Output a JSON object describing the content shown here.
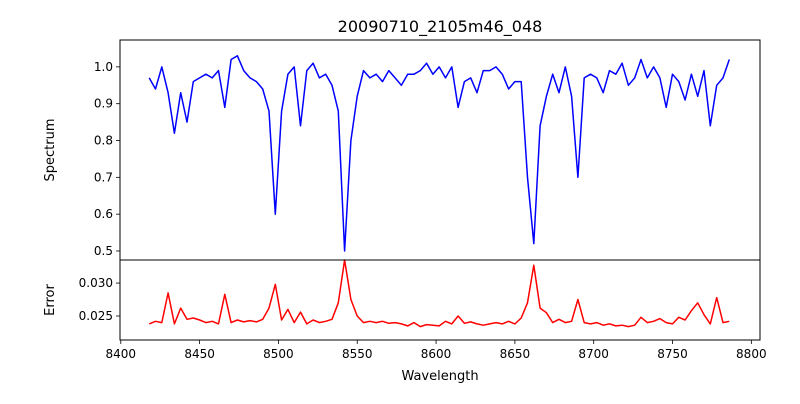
{
  "chart_data": [
    {
      "type": "line",
      "title": "20090710_2105m46_048",
      "xlabel": "",
      "ylabel": "Spectrum",
      "xlim": [
        8399.5,
        8805.5
      ],
      "ylim": [
        0.4755,
        1.073
      ],
      "yticks": [
        "0.5",
        "0.6",
        "0.7",
        "0.8",
        "0.9",
        "1.0"
      ],
      "ytick_values": [
        0.5,
        0.6,
        0.7,
        0.8,
        0.9,
        1.0
      ],
      "color": "#0000ff",
      "x": [
        8418,
        8422,
        8426,
        8430,
        8434,
        8438,
        8442,
        8446,
        8450,
        8454,
        8458,
        8462,
        8466,
        8470,
        8474,
        8478,
        8482,
        8486,
        8490,
        8494,
        8498,
        8502,
        8506,
        8510,
        8514,
        8518,
        8522,
        8526,
        8530,
        8534,
        8538,
        8542,
        8546,
        8550,
        8554,
        8558,
        8562,
        8566,
        8570,
        8574,
        8578,
        8582,
        8586,
        8590,
        8594,
        8598,
        8602,
        8606,
        8610,
        8614,
        8618,
        8622,
        8626,
        8630,
        8634,
        8638,
        8642,
        8646,
        8650,
        8654,
        8658,
        8662,
        8666,
        8670,
        8674,
        8678,
        8682,
        8686,
        8690,
        8694,
        8698,
        8702,
        8706,
        8710,
        8714,
        8718,
        8722,
        8726,
        8730,
        8734,
        8738,
        8742,
        8746,
        8750,
        8754,
        8758,
        8762,
        8766,
        8770,
        8774,
        8778,
        8782,
        8786
      ],
      "y": [
        0.97,
        0.94,
        1.0,
        0.93,
        0.82,
        0.93,
        0.85,
        0.96,
        0.97,
        0.98,
        0.97,
        0.99,
        0.89,
        1.02,
        1.03,
        0.99,
        0.97,
        0.96,
        0.94,
        0.88,
        0.6,
        0.88,
        0.98,
        1.0,
        0.84,
        0.99,
        1.01,
        0.97,
        0.98,
        0.95,
        0.88,
        0.5,
        0.8,
        0.92,
        0.99,
        0.97,
        0.98,
        0.96,
        0.99,
        0.97,
        0.95,
        0.98,
        0.98,
        0.99,
        1.01,
        0.98,
        1.0,
        0.97,
        1.0,
        0.89,
        0.96,
        0.97,
        0.93,
        0.99,
        0.99,
        1.0,
        0.98,
        0.94,
        0.96,
        0.96,
        0.7,
        0.52,
        0.84,
        0.92,
        0.98,
        0.93,
        1.0,
        0.92,
        0.7,
        0.97,
        0.98,
        0.97,
        0.93,
        0.99,
        0.98,
        1.01,
        0.95,
        0.97,
        1.02,
        0.97,
        1.0,
        0.97,
        0.89,
        0.98,
        0.96,
        0.91,
        0.98,
        0.92,
        0.99,
        0.84,
        0.95,
        0.97,
        1.02
      ]
    },
    {
      "type": "line",
      "title": "",
      "xlabel": "Wavelength",
      "ylabel": "Error",
      "xlim": [
        8399.5,
        8805.5
      ],
      "ylim": [
        0.02136,
        0.0335
      ],
      "yticks": [
        "0.025",
        "0.030"
      ],
      "ytick_values": [
        0.025,
        0.03
      ],
      "xticks": [
        "8400",
        "8450",
        "8500",
        "8550",
        "8600",
        "8650",
        "8700",
        "8750",
        "8800"
      ],
      "xtick_values": [
        8400,
        8450,
        8500,
        8550,
        8600,
        8650,
        8700,
        8750,
        8800
      ],
      "color": "#ff0000",
      "x": [
        8418,
        8422,
        8426,
        8430,
        8434,
        8438,
        8442,
        8446,
        8450,
        8454,
        8458,
        8462,
        8466,
        8470,
        8474,
        8478,
        8482,
        8486,
        8490,
        8494,
        8498,
        8502,
        8506,
        8510,
        8514,
        8518,
        8522,
        8526,
        8530,
        8534,
        8538,
        8542,
        8546,
        8550,
        8554,
        8558,
        8562,
        8566,
        8570,
        8574,
        8578,
        8582,
        8586,
        8590,
        8594,
        8598,
        8602,
        8606,
        8610,
        8614,
        8618,
        8622,
        8626,
        8630,
        8634,
        8638,
        8642,
        8646,
        8650,
        8654,
        8658,
        8662,
        8666,
        8670,
        8674,
        8678,
        8682,
        8686,
        8690,
        8694,
        8698,
        8702,
        8706,
        8710,
        8714,
        8718,
        8722,
        8726,
        8730,
        8734,
        8738,
        8742,
        8746,
        8750,
        8754,
        8758,
        8762,
        8766,
        8770,
        8774,
        8778,
        8782,
        8786
      ],
      "y": [
        0.0238,
        0.0242,
        0.024,
        0.0285,
        0.0238,
        0.0262,
        0.0245,
        0.0247,
        0.0244,
        0.024,
        0.0242,
        0.0238,
        0.0283,
        0.024,
        0.0244,
        0.0241,
        0.0243,
        0.0241,
        0.0245,
        0.0262,
        0.0298,
        0.0244,
        0.026,
        0.024,
        0.0256,
        0.0238,
        0.0244,
        0.024,
        0.0242,
        0.0245,
        0.027,
        0.0335,
        0.0275,
        0.025,
        0.024,
        0.0242,
        0.024,
        0.0242,
        0.0239,
        0.024,
        0.0238,
        0.0235,
        0.024,
        0.0234,
        0.0237,
        0.0236,
        0.0235,
        0.0242,
        0.0238,
        0.025,
        0.0239,
        0.0241,
        0.0238,
        0.0236,
        0.0238,
        0.024,
        0.0238,
        0.0242,
        0.0238,
        0.0247,
        0.027,
        0.0327,
        0.0262,
        0.0255,
        0.024,
        0.0245,
        0.024,
        0.0242,
        0.0275,
        0.024,
        0.0238,
        0.024,
        0.0236,
        0.0238,
        0.0235,
        0.0236,
        0.0234,
        0.0236,
        0.0248,
        0.024,
        0.0242,
        0.0246,
        0.024,
        0.0238,
        0.0248,
        0.0244,
        0.0258,
        0.027,
        0.0252,
        0.0238,
        0.0278,
        0.024,
        0.0242
      ]
    }
  ]
}
